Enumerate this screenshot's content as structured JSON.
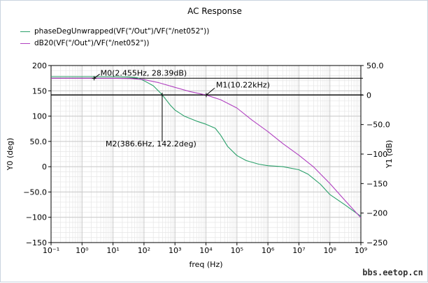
{
  "window": {
    "title": "AC Response",
    "watermark": "bbs.eetop.cn"
  },
  "colors": {
    "phase": "#2aa06a",
    "db": "#b040c0",
    "grid": "#c8c8c8",
    "axis": "#000000"
  },
  "chart_data": {
    "type": "line",
    "title": "AC Response",
    "xlabel": "freq (Hz)",
    "xscale": "log",
    "xlim": [
      0.1,
      1000000000
    ],
    "x_tick_labels": [
      "10⁻¹",
      "10⁰",
      "10¹",
      "10²",
      "10³",
      "10⁴",
      "10⁵",
      "10⁶",
      "10⁷",
      "10⁸",
      "10⁹"
    ],
    "y_left": {
      "label": "Y0 (deg)",
      "ylim": [
        -150,
        200
      ],
      "tick_labels": [
        "200",
        "150",
        "100",
        "50.0",
        "0",
        "−50.0",
        "−100",
        "−150"
      ]
    },
    "y_right": {
      "label": "Y1 (dB)",
      "ylim": [
        -250,
        50
      ],
      "tick_labels": [
        "50.0",
        "0",
        "−50.0",
        "−100",
        "−150",
        "−200",
        "−250"
      ]
    },
    "grid": true,
    "series": [
      {
        "name": "phaseDegUnwrapped(VF(\"/Out\")/VF(\"/net052\"))",
        "axis": "left",
        "x": [
          0.1,
          1,
          10,
          30,
          60,
          100,
          200,
          386.6,
          700,
          1000,
          2000,
          5000,
          10000,
          20000,
          30000,
          50000,
          100000,
          200000,
          500000,
          1000000,
          3000000,
          10000000,
          20000000,
          50000000,
          100000000,
          300000000,
          1000000000
        ],
        "y": [
          178,
          178,
          178,
          177.5,
          176,
          170,
          160,
          142.2,
          122,
          112,
          100,
          90,
          84,
          76,
          62,
          40,
          22,
          12,
          5,
          2,
          0,
          -6,
          -15,
          -35,
          -55,
          -75,
          -98
        ]
      },
      {
        "name": "dB20(VF(\"/Out\")/VF(\"/net052\"))",
        "axis": "right",
        "x": [
          0.1,
          1,
          2.455,
          10,
          40,
          100,
          300,
          1000,
          3000,
          10220,
          30000,
          100000,
          300000,
          1000000,
          3000000,
          10000000,
          30000000,
          100000000,
          300000000,
          1000000000
        ],
        "y": [
          28.4,
          28.4,
          28.39,
          28.3,
          27.8,
          26.1,
          21.0,
          13.0,
          6.0,
          0.0,
          -8.0,
          -22.0,
          -42.0,
          -62.0,
          -82.0,
          -102.0,
          -122.0,
          -150.0,
          -178.0,
          -208.0
        ]
      }
    ],
    "hlines": [
      {
        "axis": "right",
        "y": 28.39
      },
      {
        "axis": "right",
        "y": 0
      },
      {
        "axis": "left",
        "y": 142.2
      }
    ],
    "markers": [
      {
        "id": "M0",
        "label": "M0(2.455Hz, 28.39dB)",
        "axis": "right",
        "x": 2.455,
        "y": 28.39
      },
      {
        "id": "M1",
        "label": "M1(10.22kHz)",
        "axis": "right",
        "x": 10220,
        "y": 0
      },
      {
        "id": "M2",
        "label": "M2(386.6Hz, 142.2deg)",
        "axis": "left",
        "x": 386.6,
        "y": 142.2
      }
    ]
  }
}
